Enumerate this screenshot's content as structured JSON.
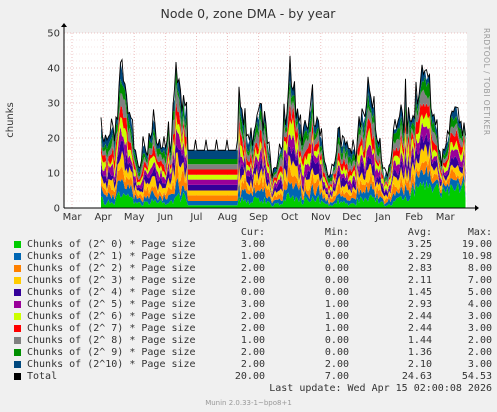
{
  "chart_data": {
    "type": "area",
    "title": "Node 0, zone DMA - by year",
    "ylabel": "chunks",
    "ylim": [
      0,
      50
    ],
    "yticks": [
      "0",
      "10",
      "20",
      "30",
      "40",
      "50"
    ],
    "xticks": [
      "Mar",
      "Apr",
      "May",
      "Jun",
      "Jul",
      "Aug",
      "Sep",
      "Oct",
      "Nov",
      "Dec",
      "Jan",
      "Feb",
      "Mar"
    ],
    "grid": true,
    "stacked": true,
    "series_colors": [
      "#00cc00",
      "#0066b3",
      "#ff8000",
      "#ffcc00",
      "#330099",
      "#990099",
      "#ccff00",
      "#ff0000",
      "#808080",
      "#008f00",
      "#00487d",
      "#000000"
    ]
  },
  "watermark": "RRDTOOL / TOBI OETIKER",
  "legend": {
    "headers": {
      "cur": "Cur:",
      "min": "Min:",
      "avg": "Avg:",
      "max": "Max:"
    },
    "rows": [
      {
        "name": "Chunks of (2^ 0) * Page size",
        "color": "#00cc00",
        "cur": "3.00",
        "min": "0.00",
        "avg": "3.25",
        "max": "19.00"
      },
      {
        "name": "Chunks of (2^ 1) * Page size",
        "color": "#0066b3",
        "cur": "1.00",
        "min": "0.00",
        "avg": "2.29",
        "max": "10.98"
      },
      {
        "name": "Chunks of (2^ 2) * Page size",
        "color": "#ff8000",
        "cur": "2.00",
        "min": "0.00",
        "avg": "2.83",
        "max": "8.00"
      },
      {
        "name": "Chunks of (2^ 3) * Page size",
        "color": "#ffcc00",
        "cur": "2.00",
        "min": "0.00",
        "avg": "2.11",
        "max": "7.00"
      },
      {
        "name": "Chunks of (2^ 4) * Page size",
        "color": "#330099",
        "cur": "0.00",
        "min": "0.00",
        "avg": "1.45",
        "max": "5.00"
      },
      {
        "name": "Chunks of (2^ 5) * Page size",
        "color": "#990099",
        "cur": "3.00",
        "min": "1.00",
        "avg": "2.93",
        "max": "4.00"
      },
      {
        "name": "Chunks of (2^ 6) * Page size",
        "color": "#ccff00",
        "cur": "2.00",
        "min": "1.00",
        "avg": "2.44",
        "max": "3.00"
      },
      {
        "name": "Chunks of (2^ 7) * Page size",
        "color": "#ff0000",
        "cur": "2.00",
        "min": "1.00",
        "avg": "2.44",
        "max": "3.00"
      },
      {
        "name": "Chunks of (2^ 8) * Page size",
        "color": "#808080",
        "cur": "1.00",
        "min": "0.00",
        "avg": "1.44",
        "max": "2.00"
      },
      {
        "name": "Chunks of (2^ 9) * Page size",
        "color": "#008f00",
        "cur": "2.00",
        "min": "0.00",
        "avg": "1.36",
        "max": "2.00"
      },
      {
        "name": "Chunks of (2^10) * Page size",
        "color": "#00487d",
        "cur": "2.00",
        "min": "2.00",
        "avg": "2.10",
        "max": "3.00"
      },
      {
        "name": "Total",
        "color": "#000000",
        "cur": "20.00",
        "min": "7.00",
        "avg": "24.63",
        "max": "54.53"
      }
    ],
    "last_update": "Last update: Wed Apr 15 02:00:08 2026"
  },
  "footer": "Munin 2.0.33-1~bpo8+1"
}
